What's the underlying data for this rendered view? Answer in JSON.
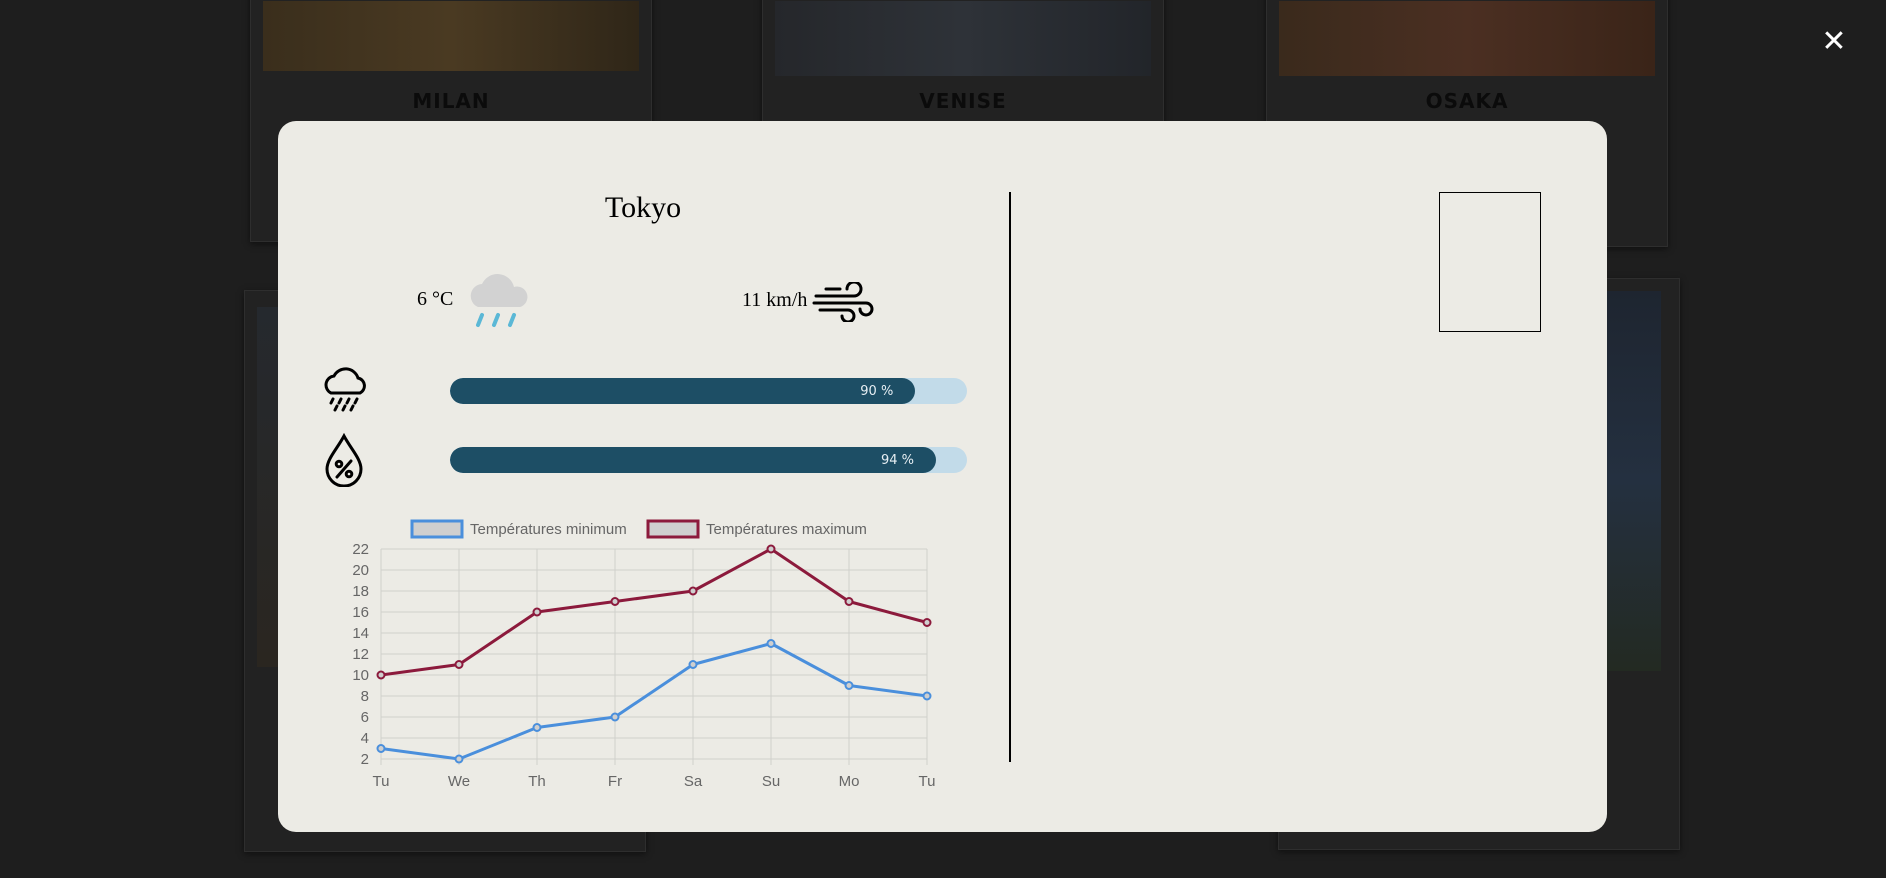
{
  "gallery": {
    "captions": [
      "MILAN",
      "VENISE",
      "OSAKA"
    ]
  },
  "close_label": "✕",
  "postcard": {
    "city": "Tokyo",
    "temperature": "6 °C",
    "wind": "11 km/h",
    "weather_icon": "rain-cloud-icon",
    "precipitation": {
      "icon": "rain-icon",
      "value": 90,
      "label": "90 %"
    },
    "humidity": {
      "icon": "humidity-drop-icon",
      "value": 94,
      "label": "94 %"
    }
  },
  "colors": {
    "bar_fill": "#1d4e65",
    "bar_track": "#c2dbe9",
    "min_series": "#4a8fdc",
    "max_series": "#8c1a3c"
  },
  "chart_data": {
    "type": "line",
    "categories": [
      "Tu",
      "We",
      "Th",
      "Fr",
      "Sa",
      "Su",
      "Mo",
      "Tu"
    ],
    "series": [
      {
        "name": "Températures minimum",
        "values": [
          3,
          2,
          5,
          6,
          11,
          13,
          9,
          8
        ]
      },
      {
        "name": "Températures maximum",
        "values": [
          10,
          11,
          16,
          17,
          18,
          22,
          17,
          15
        ]
      }
    ],
    "ylim": [
      2,
      22
    ],
    "yticks": [
      2,
      4,
      6,
      8,
      10,
      12,
      14,
      16,
      18,
      20,
      22
    ],
    "grid": true,
    "legend": "top"
  }
}
